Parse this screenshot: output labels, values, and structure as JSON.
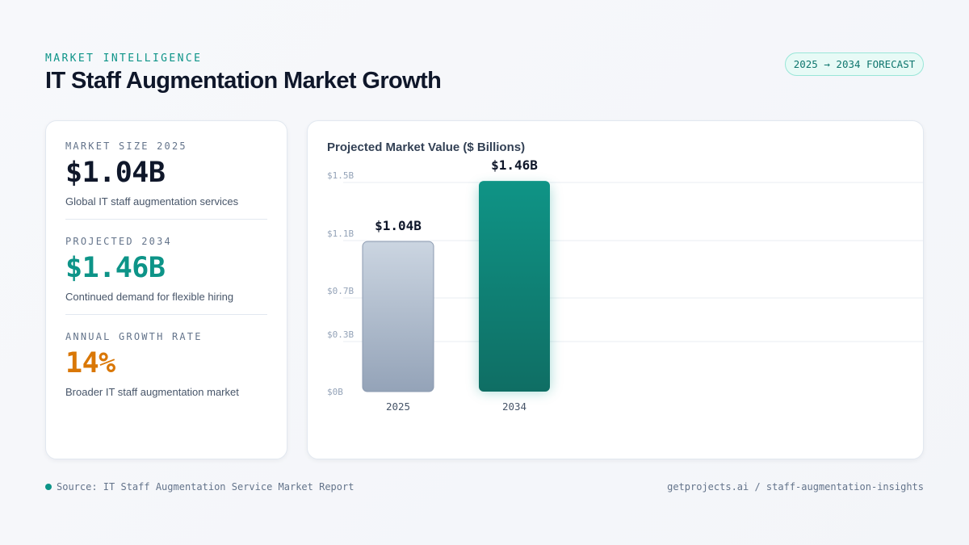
{
  "header": {
    "eyebrow": "MARKET INTELLIGENCE",
    "title": "IT Staff Augmentation Market Growth",
    "badge": "2025 → 2034 FORECAST"
  },
  "stats": [
    {
      "label": "MARKET SIZE 2025",
      "value": "$1.04B",
      "description": "Global IT staff augmentation services",
      "color": "#0f172a"
    },
    {
      "label": "PROJECTED 2034",
      "value": "$1.46B",
      "description": "Continued demand for flexible hiring",
      "color": "#0d9488"
    },
    {
      "label": "ANNUAL GROWTH RATE",
      "value": "14%",
      "description": "Broader IT staff augmentation market",
      "color": "#d97706"
    }
  ],
  "chart_data": {
    "type": "bar",
    "title": "Projected Market Value ($ Billions)",
    "categories": [
      "2025",
      "2034"
    ],
    "values": [
      1.04,
      1.46
    ],
    "value_labels": [
      "$1.04B",
      "$1.46B"
    ],
    "y_ticks": [
      0,
      0.3,
      0.7,
      1.1,
      1.5
    ],
    "y_tick_labels": [
      "$0B",
      "$0.3B",
      "$0.7B",
      "$1.1B",
      "$1.5B"
    ],
    "ylim": [
      0,
      1.5
    ],
    "grid": true,
    "colors": [
      "#94a3b8",
      "#0d9488"
    ]
  },
  "footer": {
    "source": "Source: IT Staff Augmentation Service Market Report",
    "site": "getprojects.ai / staff-augmentation-insights"
  }
}
